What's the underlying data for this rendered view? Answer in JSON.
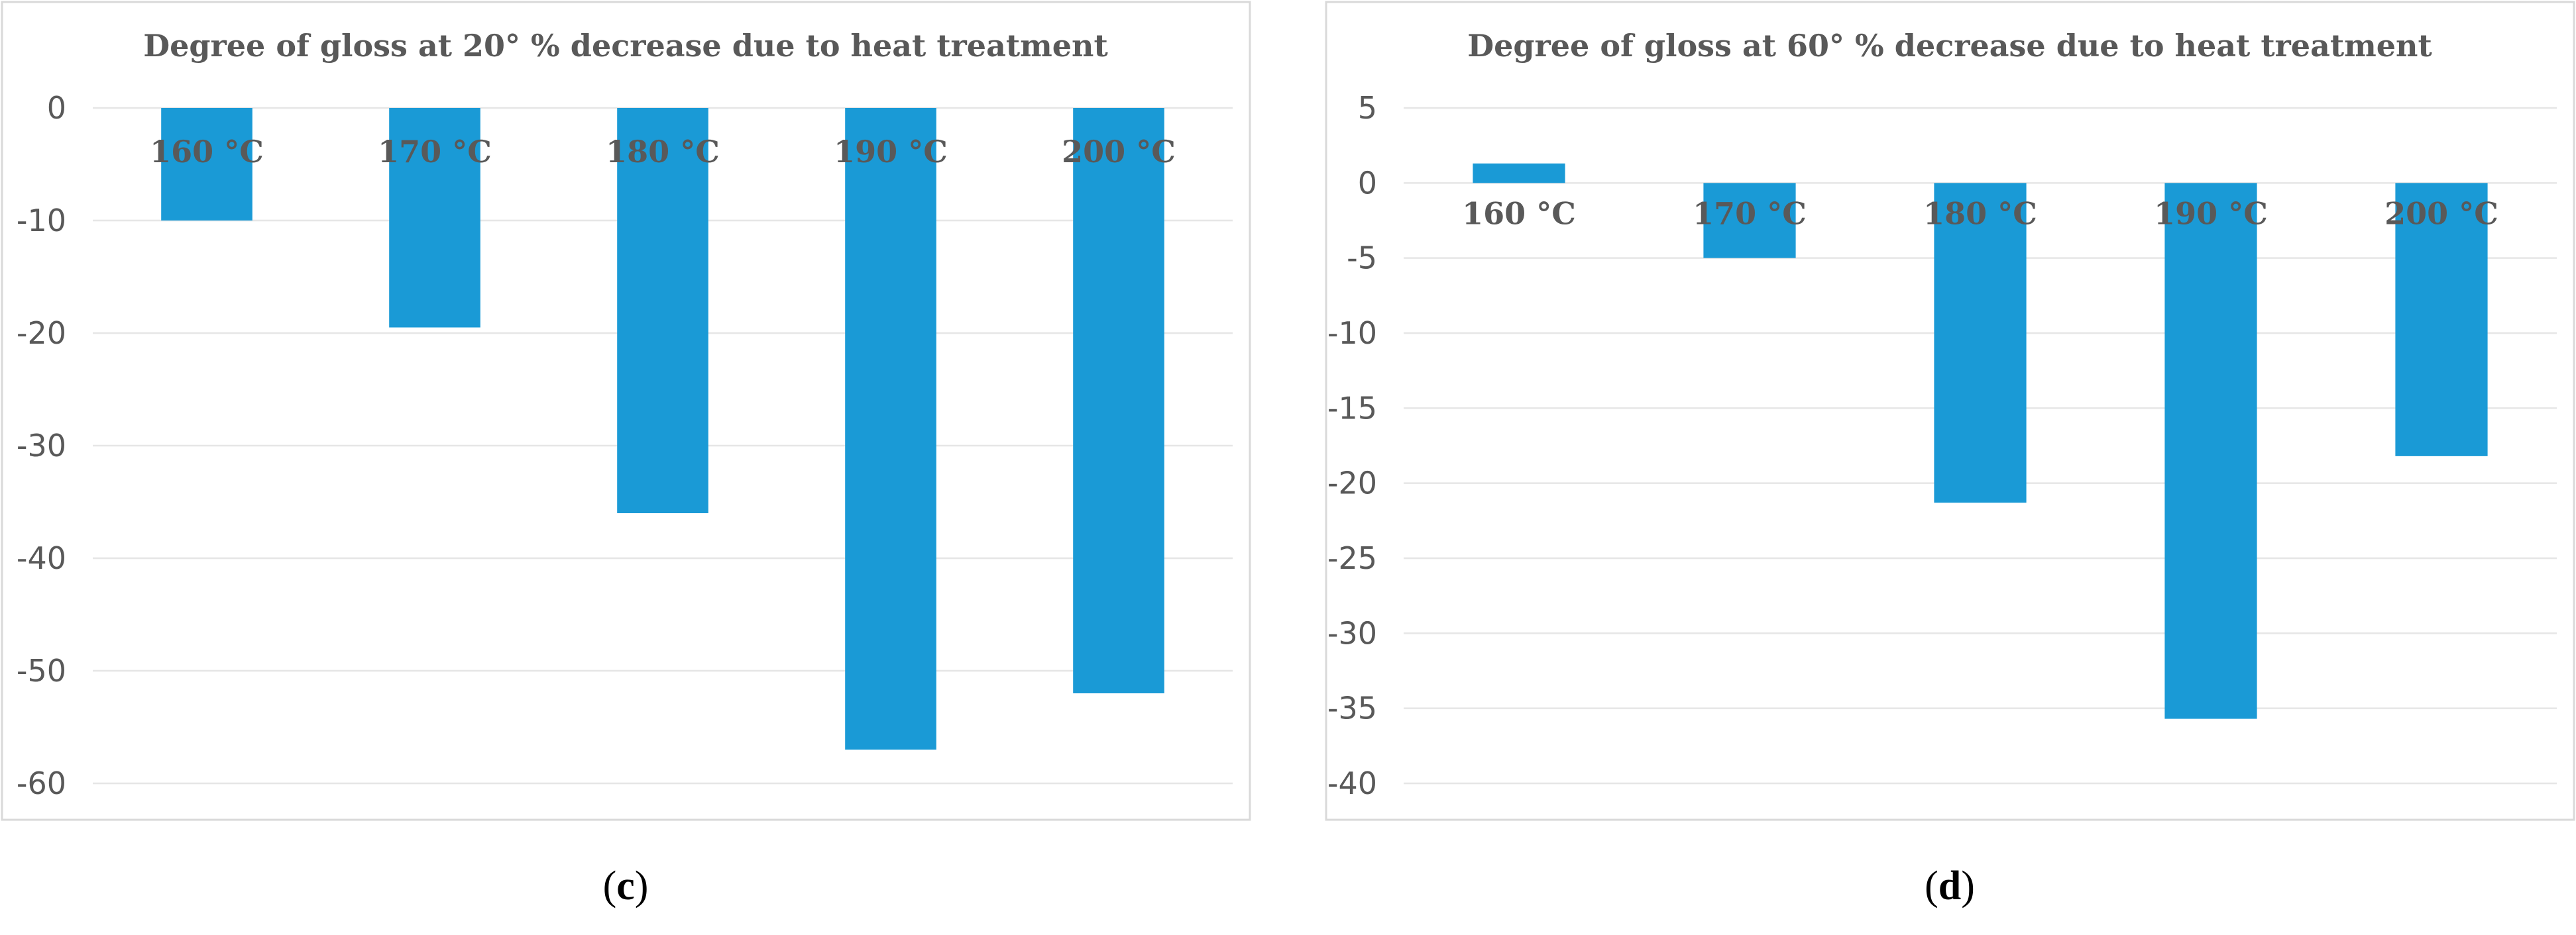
{
  "colors": {
    "bar": "#1a9ad6",
    "text": "#595959",
    "grid": "#e6e6e6",
    "frame": "#d9d9d9"
  },
  "panels": [
    {
      "label_text": "c",
      "chart_data": {
        "type": "bar",
        "title": "Degree of gloss  at 20° % decrease due to heat treatment",
        "categories": [
          "160 °C",
          "170 °C",
          "180 °C",
          "190 °C",
          "200 °C"
        ],
        "values": [
          -10,
          -19.5,
          -36,
          -57,
          -52
        ],
        "ylim": [
          -60,
          0
        ],
        "yticks": [
          0,
          -10,
          -20,
          -30,
          -40,
          -50,
          -60
        ],
        "xlabel": "",
        "ylabel": "",
        "grid": true,
        "category_labels_position": "near-zero"
      }
    },
    {
      "label_text": "d",
      "chart_data": {
        "type": "bar",
        "title": "Degree of gloss  at 60° % decrease due to heat treatment",
        "categories": [
          "160 °C",
          "170 °C",
          "180 °C",
          "190 °C",
          "200 °C"
        ],
        "values": [
          1.3,
          -5,
          -21.3,
          -35.7,
          -18.2
        ],
        "ylim": [
          -40,
          5
        ],
        "yticks": [
          5,
          0,
          -5,
          -10,
          -15,
          -20,
          -25,
          -30,
          -35,
          -40
        ],
        "xlabel": "",
        "ylabel": "",
        "grid": true,
        "category_labels_position": "near-zero"
      }
    }
  ]
}
